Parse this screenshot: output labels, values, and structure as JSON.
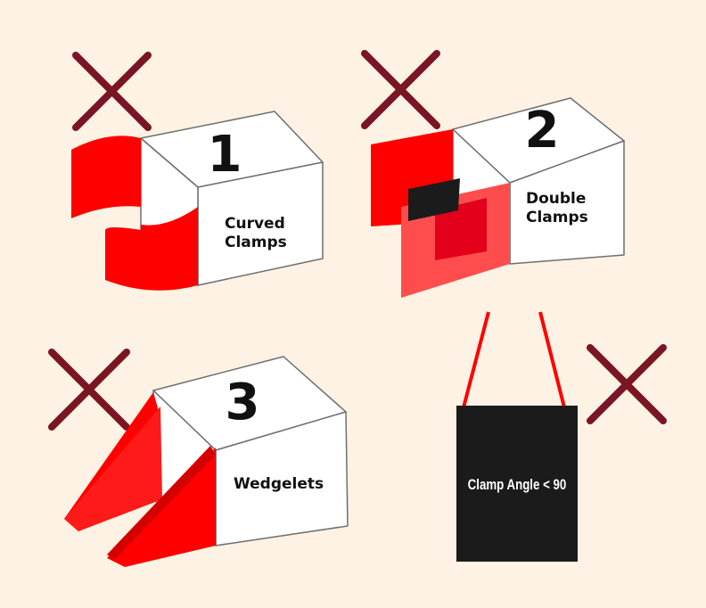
{
  "colors": {
    "background": "#fdf2e3",
    "cross": "#7a1524",
    "clamp_red": "#ff0000",
    "box_outline": "#6f6f6f",
    "bag_black": "#1b1b1b"
  },
  "panels": [
    {
      "number": "1",
      "label_line1": "Curved",
      "label_line2": "Clamps",
      "status_icon": "cross-icon"
    },
    {
      "number": "2",
      "label_line1": "Double",
      "label_line2": "Clamps",
      "status_icon": "cross-icon"
    },
    {
      "number": "3",
      "label_line1": "Wedgelets",
      "status_icon": "cross-icon"
    },
    {
      "bag_text": "Clamp Angle < 90",
      "status_icon": "cross-icon"
    }
  ]
}
